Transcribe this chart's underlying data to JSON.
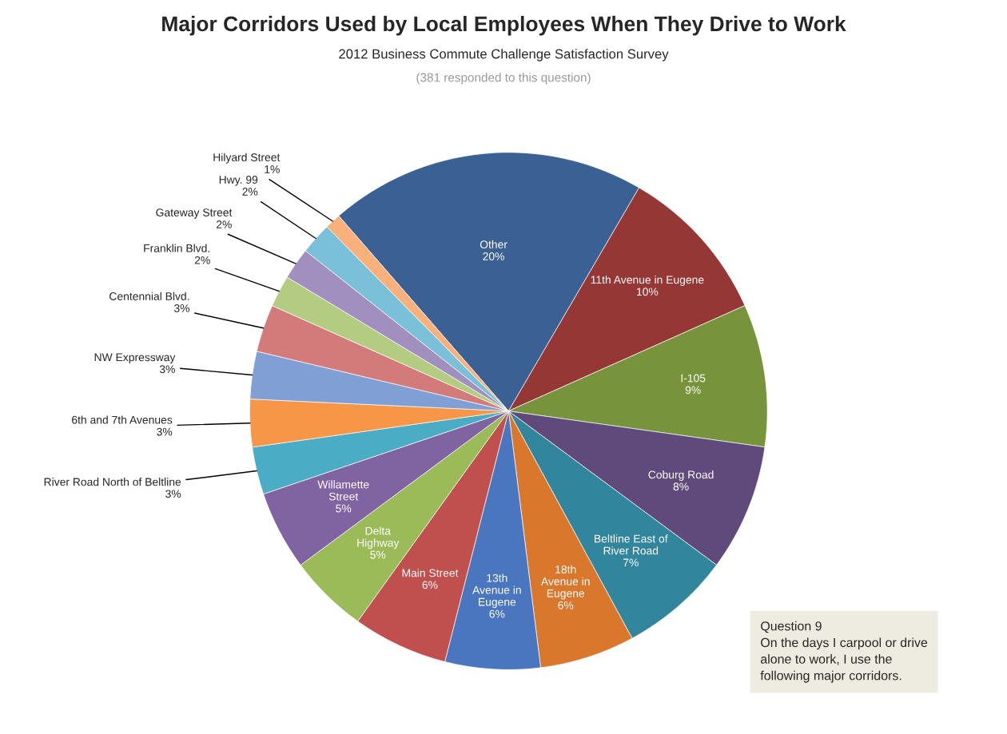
{
  "chart_data": {
    "type": "pie",
    "title": "Major Corridors Used by Local Employees When They Drive to Work",
    "subtitle": "2012 Business Commute Challenge Satisfaction Survey",
    "categories": [
      "Other",
      "11th Avenue in Eugene",
      "I-105",
      "Coburg Road",
      "Beltline East of\nRiver Road",
      "18th\nAvenue in\nEugene",
      "13th\nAvenue in\nEugene",
      "Main Street",
      "Delta\nHighway",
      "Willamette\nStreet",
      "River Road North of Beltline",
      "6th and 7th Avenues",
      "NW Expressway",
      "Centennial Blvd.",
      "Franklin Blvd.",
      "Gateway Street",
      "Hwy. 99",
      "Hilyard Street"
    ],
    "values": [
      20,
      10,
      9,
      8,
      7,
      6,
      6,
      6,
      5,
      5,
      3,
      3,
      3,
      3,
      2,
      2,
      2,
      1
    ],
    "colors": [
      "#3b6093",
      "#953735",
      "#77933c",
      "#5f4a7b",
      "#31859c",
      "#d9782d",
      "#4a76c0",
      "#c0504d",
      "#9bbb59",
      "#8064a2",
      "#4bacc6",
      "#f79646",
      "#7f9fd5",
      "#d27b7a",
      "#b3cc82",
      "#a18fbf",
      "#79c0d8",
      "#fab07a"
    ],
    "value_labels": [
      "20%",
      "10%",
      "9%",
      "8%",
      "7%",
      "6%",
      "6%",
      "6%",
      "5%",
      "5%",
      "3%",
      "3%",
      "3%",
      "3%",
      "2%",
      "2%",
      "2%",
      "1%"
    ],
    "annotations": [
      "(381 responded to this question)",
      "Question 9\nOn the days I carpool or drive\nalone to work, I use the\nfollowing major corridors."
    ]
  }
}
